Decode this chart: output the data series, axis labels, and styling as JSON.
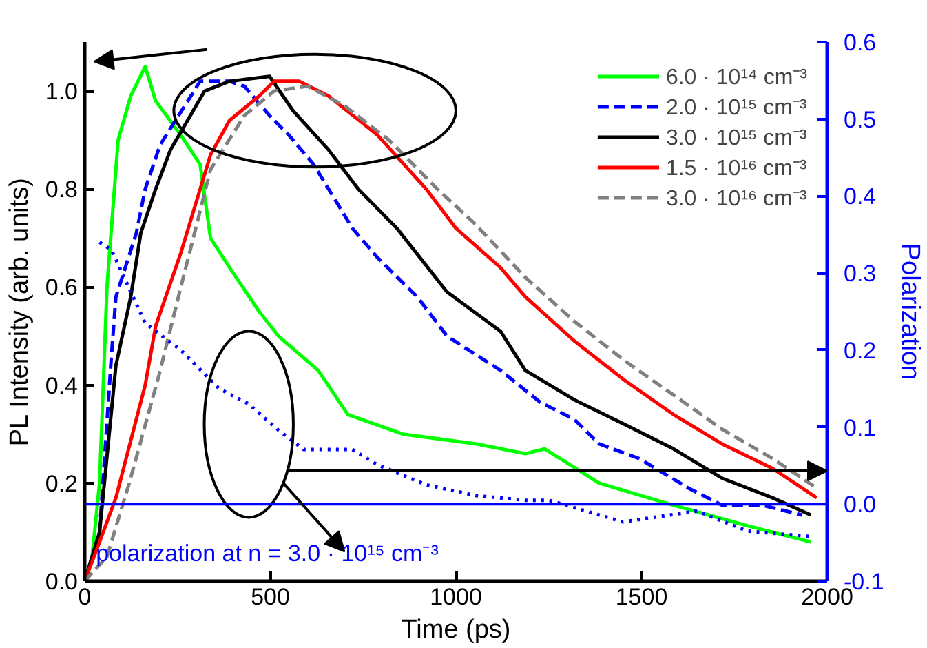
{
  "chart_data": {
    "type": "line",
    "xlabel": "Time (ps)",
    "ylabel": "PL Intensity (arb. units)",
    "y2label": "Polarization",
    "xlim": [
      0,
      2000
    ],
    "xticks": [
      0,
      500,
      1000,
      1500,
      2000
    ],
    "ylim": [
      0,
      1.1
    ],
    "yticks": [
      {
        "value": 0,
        "label": "0.0"
      },
      0.2,
      0.4,
      0.6,
      0.8,
      {
        "value": 1,
        "label": "1.0"
      }
    ],
    "y2lim": [
      -0.1,
      0.6
    ],
    "y2ticks": [
      -0.1,
      {
        "value": 0,
        "label": "0.0"
      },
      0.1,
      0.2,
      0.3,
      0.4,
      0.5,
      0.6
    ],
    "grid": false,
    "legend": "top right",
    "series": [
      {
        "name": "6.0 · 10¹⁴ cm⁻³",
        "color": "#00ff00",
        "line_style": "solid",
        "x": [
          0,
          20,
          40,
          60,
          90,
          124,
          163,
          191,
          259,
          311,
          339,
          390,
          470,
          522,
          629,
          709,
          857,
          1056,
          1187,
          1239,
          1386,
          1586,
          1785,
          1956
        ],
        "values": [
          0,
          0.05,
          0.2,
          0.6,
          0.9,
          0.99,
          1.05,
          0.98,
          0.91,
          0.85,
          0.7,
          0.64,
          0.55,
          0.5,
          0.43,
          0.34,
          0.3,
          0.28,
          0.26,
          0.27,
          0.2,
          0.155,
          0.113,
          0.08
        ]
      },
      {
        "name": "2.0 · 10¹⁵ cm⁻³",
        "color": "#0000ff",
        "line_style": "dashed",
        "x": [
          0,
          40,
          72,
          84,
          139,
          163,
          203,
          311,
          390,
          430,
          498,
          550,
          617,
          657,
          721,
          789,
          896,
          976,
          1120,
          1227,
          1319,
          1386,
          1494,
          1626,
          1717,
          1825,
          1932
        ],
        "values": [
          0,
          0.1,
          0.46,
          0.58,
          0.71,
          0.8,
          0.89,
          1.02,
          1.02,
          1.01,
          0.95,
          0.91,
          0.85,
          0.8,
          0.72,
          0.66,
          0.58,
          0.5,
          0.43,
          0.365,
          0.33,
          0.28,
          0.25,
          0.19,
          0.155,
          0.155,
          0.135
        ]
      },
      {
        "name": "3.0 · 10¹⁵ cm⁻³",
        "color": "#000000",
        "line_style": "solid",
        "x": [
          0,
          40,
          84,
          124,
          151,
          191,
          231,
          323,
          390,
          498,
          561,
          657,
          737,
          841,
          976,
          1120,
          1187,
          1319,
          1454,
          1586,
          1717,
          1853,
          1956
        ],
        "values": [
          0,
          0.1,
          0.44,
          0.58,
          0.71,
          0.8,
          0.88,
          1.0,
          1.02,
          1.03,
          0.96,
          0.88,
          0.8,
          0.72,
          0.59,
          0.51,
          0.43,
          0.37,
          0.32,
          0.27,
          0.21,
          0.17,
          0.135
        ]
      },
      {
        "name": "1.5 · 10¹⁶ cm⁻³",
        "color": "#ff0000",
        "line_style": "solid",
        "x": [
          0,
          40,
          84,
          163,
          191,
          259,
          339,
          390,
          470,
          510,
          578,
          657,
          789,
          920,
          1000,
          1120,
          1187,
          1319,
          1454,
          1586,
          1717,
          1853,
          1972
        ],
        "values": [
          0,
          0.08,
          0.17,
          0.4,
          0.52,
          0.67,
          0.87,
          0.94,
          0.99,
          1.02,
          1.02,
          0.99,
          0.91,
          0.8,
          0.72,
          0.64,
          0.58,
          0.49,
          0.41,
          0.34,
          0.28,
          0.23,
          0.17
        ]
      },
      {
        "name": "3.0 · 10¹⁶ cm⁻³",
        "color": "#808080",
        "line_style": "dashed",
        "x": [
          0,
          60,
          120,
          200,
          259,
          339,
          430,
          510,
          600,
          700,
          820,
          950,
          1050,
          1187,
          1319,
          1454,
          1586,
          1717,
          1853,
          1972
        ],
        "values": [
          0,
          0.05,
          0.2,
          0.42,
          0.6,
          0.84,
          0.95,
          1.0,
          1.01,
          0.97,
          0.9,
          0.8,
          0.73,
          0.62,
          0.53,
          0.45,
          0.38,
          0.31,
          0.25,
          0.19
        ]
      },
      {
        "color": "#0000ff",
        "line_style": "dotted",
        "axis": "y2",
        "x": [
          40,
          72,
          163,
          259,
          362,
          442,
          522,
          590,
          721,
          789,
          920,
          1056,
          1187,
          1251,
          1450,
          1650,
          1785,
          1956
        ],
        "values": [
          0.34,
          0.33,
          0.235,
          0.2,
          0.15,
          0.13,
          0.096,
          0.071,
          0.071,
          0.051,
          0.025,
          0.011,
          0.005,
          0.005,
          -0.023,
          -0.009,
          -0.035,
          -0.042
        ]
      }
    ],
    "ref_lines": [
      {
        "axis": "y2",
        "value": 0.0,
        "color": "#0000ff"
      }
    ],
    "annotations": [
      "polarization at n = 3.0 · 10¹⁵ cm⁻³"
    ]
  }
}
